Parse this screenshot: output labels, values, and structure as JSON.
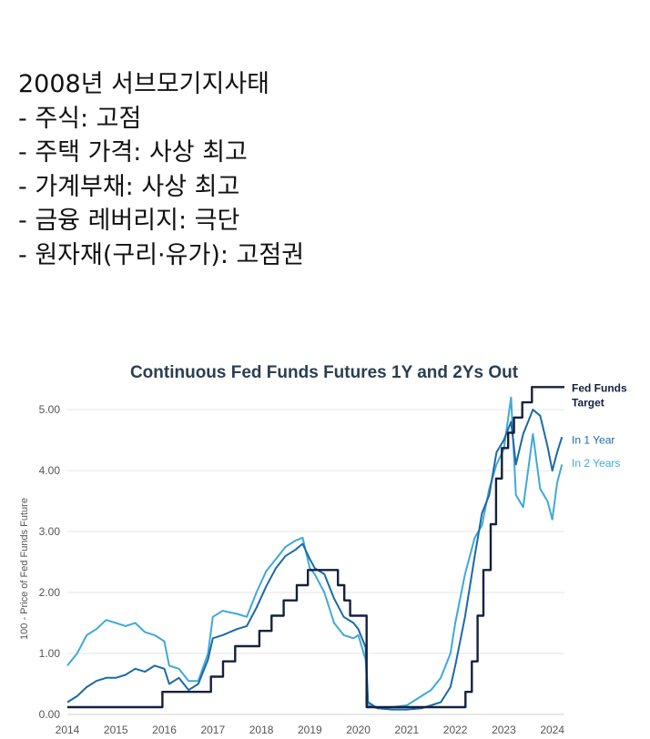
{
  "notes": {
    "heading": "2008년 서브모기지사태",
    "lines": [
      "- 주식: 고점",
      "- 주택 가격: 사상 최고",
      "- 가계부채: 사상 최고",
      "- 금융 레버리지: 극단",
      "- 원자재(구리·유가): 고점권"
    ]
  },
  "chart_data": {
    "type": "line",
    "title": "Continuous Fed Funds Futures 1Y and 2Ys Out",
    "ylabel": "100 - Price of Fed Funds Future",
    "xlabel": "",
    "xlim": [
      2014,
      2024.25
    ],
    "ylim": [
      0,
      5.3
    ],
    "x_ticks": [
      "2014",
      "2015",
      "2016",
      "2017",
      "2018",
      "2019",
      "2020",
      "2021",
      "2022",
      "2023",
      "2024"
    ],
    "y_ticks": [
      "0.00",
      "1.00",
      "2.00",
      "3.00",
      "4.00",
      "5.00"
    ],
    "grid": true,
    "legend": "right, labels at line ends",
    "colors": {
      "target": "#14213d",
      "one_year": "#1b6aa5",
      "two_years": "#3fa9d9",
      "grid": "#e6e6e6",
      "axis_text": "#555555",
      "title": "#2c3e50"
    },
    "series": [
      {
        "name": "Fed Funds Target",
        "key": "target",
        "points": [
          [
            2014,
            0.12
          ],
          [
            2015.96,
            0.12
          ],
          [
            2015.96,
            0.37
          ],
          [
            2016.96,
            0.37
          ],
          [
            2016.96,
            0.62
          ],
          [
            2017.21,
            0.62
          ],
          [
            2017.21,
            0.87
          ],
          [
            2017.46,
            0.87
          ],
          [
            2017.46,
            1.12
          ],
          [
            2017.96,
            1.12
          ],
          [
            2017.96,
            1.37
          ],
          [
            2018.21,
            1.37
          ],
          [
            2018.21,
            1.62
          ],
          [
            2018.46,
            1.62
          ],
          [
            2018.46,
            1.87
          ],
          [
            2018.73,
            1.87
          ],
          [
            2018.73,
            2.12
          ],
          [
            2018.96,
            2.12
          ],
          [
            2018.96,
            2.37
          ],
          [
            2019.58,
            2.37
          ],
          [
            2019.58,
            2.12
          ],
          [
            2019.71,
            2.12
          ],
          [
            2019.71,
            1.87
          ],
          [
            2019.83,
            1.87
          ],
          [
            2019.83,
            1.62
          ],
          [
            2020.17,
            1.62
          ],
          [
            2020.17,
            0.12
          ],
          [
            2022.21,
            0.12
          ],
          [
            2022.21,
            0.37
          ],
          [
            2022.34,
            0.37
          ],
          [
            2022.34,
            0.87
          ],
          [
            2022.46,
            0.87
          ],
          [
            2022.46,
            1.62
          ],
          [
            2022.58,
            1.62
          ],
          [
            2022.58,
            2.37
          ],
          [
            2022.73,
            2.37
          ],
          [
            2022.73,
            3.12
          ],
          [
            2022.84,
            3.12
          ],
          [
            2022.84,
            3.87
          ],
          [
            2022.96,
            3.87
          ],
          [
            2022.96,
            4.37
          ],
          [
            2023.09,
            4.37
          ],
          [
            2023.09,
            4.62
          ],
          [
            2023.21,
            4.62
          ],
          [
            2023.21,
            4.87
          ],
          [
            2023.38,
            4.87
          ],
          [
            2023.38,
            5.12
          ],
          [
            2023.58,
            5.12
          ],
          [
            2023.58,
            5.37
          ],
          [
            2024.25,
            5.37
          ]
        ]
      },
      {
        "name": "In 1 Year",
        "key": "one_year",
        "points": [
          [
            2014,
            0.2
          ],
          [
            2014.2,
            0.3
          ],
          [
            2014.4,
            0.45
          ],
          [
            2014.6,
            0.55
          ],
          [
            2014.8,
            0.6
          ],
          [
            2015,
            0.6
          ],
          [
            2015.2,
            0.65
          ],
          [
            2015.4,
            0.75
          ],
          [
            2015.6,
            0.7
          ],
          [
            2015.8,
            0.8
          ],
          [
            2016,
            0.75
          ],
          [
            2016.1,
            0.5
          ],
          [
            2016.3,
            0.6
          ],
          [
            2016.5,
            0.4
          ],
          [
            2016.7,
            0.5
          ],
          [
            2016.9,
            0.9
          ],
          [
            2017,
            1.25
          ],
          [
            2017.2,
            1.3
          ],
          [
            2017.5,
            1.4
          ],
          [
            2017.7,
            1.45
          ],
          [
            2017.9,
            1.75
          ],
          [
            2018.1,
            2.1
          ],
          [
            2018.3,
            2.4
          ],
          [
            2018.5,
            2.6
          ],
          [
            2018.7,
            2.7
          ],
          [
            2018.85,
            2.8
          ],
          [
            2019,
            2.55
          ],
          [
            2019.1,
            2.4
          ],
          [
            2019.3,
            2.3
          ],
          [
            2019.5,
            1.9
          ],
          [
            2019.7,
            1.6
          ],
          [
            2019.9,
            1.5
          ],
          [
            2020,
            1.4
          ],
          [
            2020.15,
            1.1
          ],
          [
            2020.2,
            0.2
          ],
          [
            2020.4,
            0.1
          ],
          [
            2020.7,
            0.08
          ],
          [
            2021,
            0.08
          ],
          [
            2021.3,
            0.1
          ],
          [
            2021.5,
            0.15
          ],
          [
            2021.7,
            0.2
          ],
          [
            2021.9,
            0.45
          ],
          [
            2022,
            0.8
          ],
          [
            2022.2,
            1.6
          ],
          [
            2022.4,
            2.6
          ],
          [
            2022.55,
            3.3
          ],
          [
            2022.7,
            3.6
          ],
          [
            2022.85,
            4.3
          ],
          [
            2023,
            4.5
          ],
          [
            2023.15,
            4.8
          ],
          [
            2023.25,
            4.1
          ],
          [
            2023.4,
            4.6
          ],
          [
            2023.6,
            5.0
          ],
          [
            2023.75,
            4.9
          ],
          [
            2023.9,
            4.4
          ],
          [
            2024,
            4.0
          ],
          [
            2024.1,
            4.3
          ],
          [
            2024.2,
            4.55
          ]
        ]
      },
      {
        "name": "In 2 Years",
        "key": "two_years",
        "points": [
          [
            2014,
            0.8
          ],
          [
            2014.2,
            1.0
          ],
          [
            2014.4,
            1.3
          ],
          [
            2014.6,
            1.4
          ],
          [
            2014.8,
            1.55
          ],
          [
            2015,
            1.5
          ],
          [
            2015.2,
            1.45
          ],
          [
            2015.4,
            1.5
          ],
          [
            2015.6,
            1.35
          ],
          [
            2015.8,
            1.3
          ],
          [
            2016,
            1.2
          ],
          [
            2016.1,
            0.8
          ],
          [
            2016.3,
            0.75
          ],
          [
            2016.5,
            0.55
          ],
          [
            2016.7,
            0.55
          ],
          [
            2016.9,
            1.0
          ],
          [
            2017,
            1.6
          ],
          [
            2017.2,
            1.7
          ],
          [
            2017.5,
            1.65
          ],
          [
            2017.7,
            1.6
          ],
          [
            2017.9,
            2.0
          ],
          [
            2018.1,
            2.35
          ],
          [
            2018.3,
            2.55
          ],
          [
            2018.5,
            2.75
          ],
          [
            2018.7,
            2.85
          ],
          [
            2018.85,
            2.9
          ],
          [
            2019,
            2.4
          ],
          [
            2019.1,
            2.3
          ],
          [
            2019.3,
            2.0
          ],
          [
            2019.5,
            1.5
          ],
          [
            2019.7,
            1.3
          ],
          [
            2019.9,
            1.25
          ],
          [
            2020,
            1.3
          ],
          [
            2020.15,
            0.9
          ],
          [
            2020.2,
            0.15
          ],
          [
            2020.4,
            0.1
          ],
          [
            2020.7,
            0.12
          ],
          [
            2021,
            0.15
          ],
          [
            2021.3,
            0.3
          ],
          [
            2021.5,
            0.4
          ],
          [
            2021.7,
            0.6
          ],
          [
            2021.9,
            1.0
          ],
          [
            2022,
            1.5
          ],
          [
            2022.2,
            2.3
          ],
          [
            2022.4,
            2.9
          ],
          [
            2022.55,
            3.1
          ],
          [
            2022.7,
            3.7
          ],
          [
            2022.85,
            4.1
          ],
          [
            2023,
            4.35
          ],
          [
            2023.15,
            5.2
          ],
          [
            2023.25,
            3.6
          ],
          [
            2023.4,
            3.4
          ],
          [
            2023.6,
            4.6
          ],
          [
            2023.75,
            3.7
          ],
          [
            2023.9,
            3.5
          ],
          [
            2024,
            3.2
          ],
          [
            2024.1,
            3.8
          ],
          [
            2024.2,
            4.1
          ]
        ]
      }
    ],
    "legend_labels": {
      "target": [
        "Fed Funds",
        "Target"
      ],
      "one_year": "In 1 Year",
      "two_years": "In 2 Years"
    }
  }
}
